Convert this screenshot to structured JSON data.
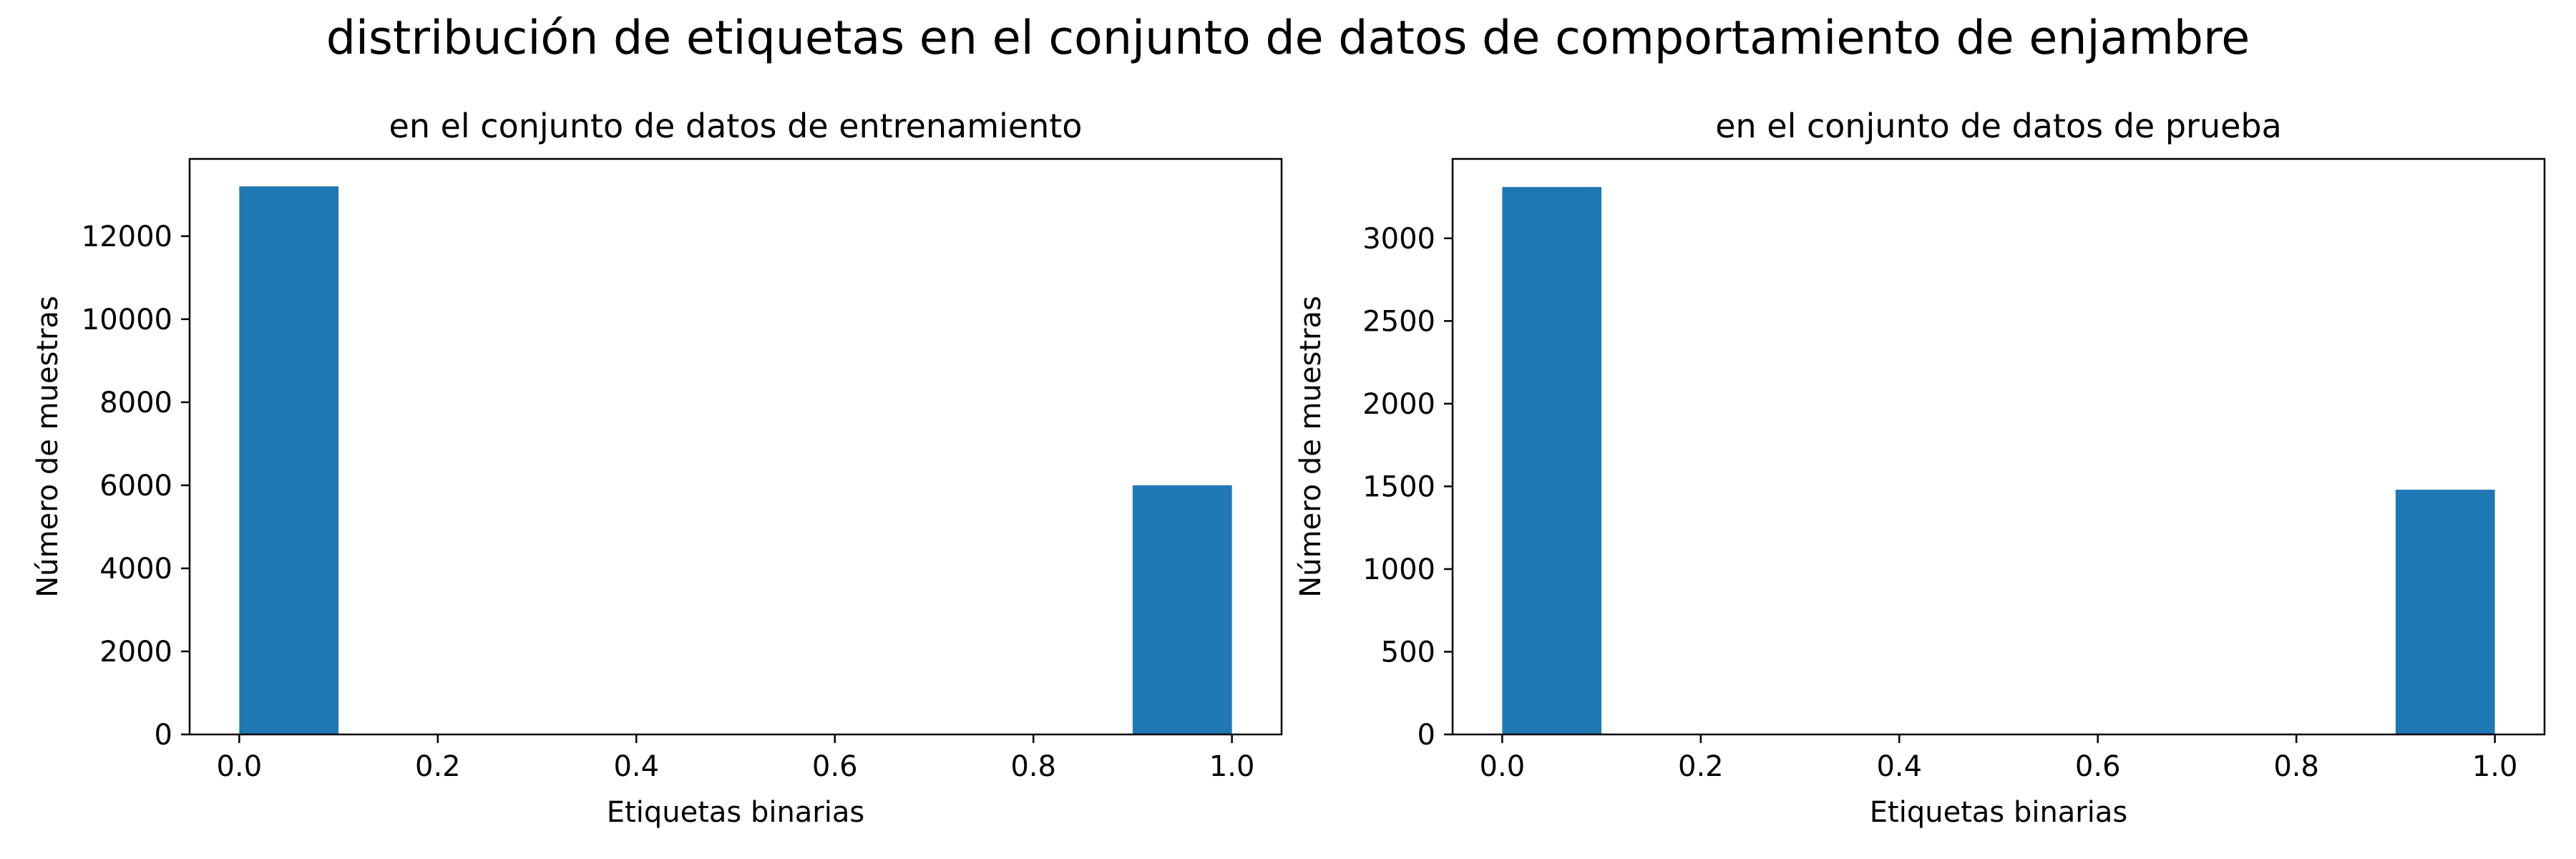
{
  "figure": {
    "suptitle": "distribución de etiquetas en el conjunto de datos de comportamiento de enjambre"
  },
  "colors": {
    "bar": "#1f77b4",
    "axes": "#000000",
    "background": "#ffffff"
  },
  "chart_data": [
    {
      "type": "bar",
      "subtype": "histogram",
      "title": "en el conjunto de datos de entrenamiento",
      "xlabel": "Etiquetas binarias",
      "ylabel": "Número de muestras",
      "xlim": [
        -0.05,
        1.05
      ],
      "ylim": [
        0,
        13860
      ],
      "xticks": [
        0.0,
        0.2,
        0.4,
        0.6,
        0.8,
        1.0
      ],
      "xtick_labels": [
        "0.0",
        "0.2",
        "0.4",
        "0.6",
        "0.8",
        "1.0"
      ],
      "yticks": [
        0,
        2000,
        4000,
        6000,
        8000,
        10000,
        12000
      ],
      "ytick_labels": [
        "0",
        "2000",
        "4000",
        "6000",
        "8000",
        "10000",
        "12000"
      ],
      "grid": false,
      "bins": [
        {
          "x0": 0.0,
          "x1": 0.1,
          "value": 13200
        },
        {
          "x0": 0.9,
          "x1": 1.0,
          "value": 6000
        }
      ]
    },
    {
      "type": "bar",
      "subtype": "histogram",
      "title": "en el conjunto de datos de prueba",
      "xlabel": "Etiquetas binarias",
      "ylabel": "Número de muestras",
      "xlim": [
        -0.05,
        1.05
      ],
      "ylim": [
        0,
        3480
      ],
      "xticks": [
        0.0,
        0.2,
        0.4,
        0.6,
        0.8,
        1.0
      ],
      "xtick_labels": [
        "0.0",
        "0.2",
        "0.4",
        "0.6",
        "0.8",
        "1.0"
      ],
      "yticks": [
        0,
        500,
        1000,
        1500,
        2000,
        2500,
        3000
      ],
      "ytick_labels": [
        "0",
        "500",
        "1000",
        "1500",
        "2000",
        "2500",
        "3000"
      ],
      "grid": false,
      "bins": [
        {
          "x0": 0.0,
          "x1": 0.1,
          "value": 3310
        },
        {
          "x0": 0.9,
          "x1": 1.0,
          "value": 1480
        }
      ]
    }
  ]
}
